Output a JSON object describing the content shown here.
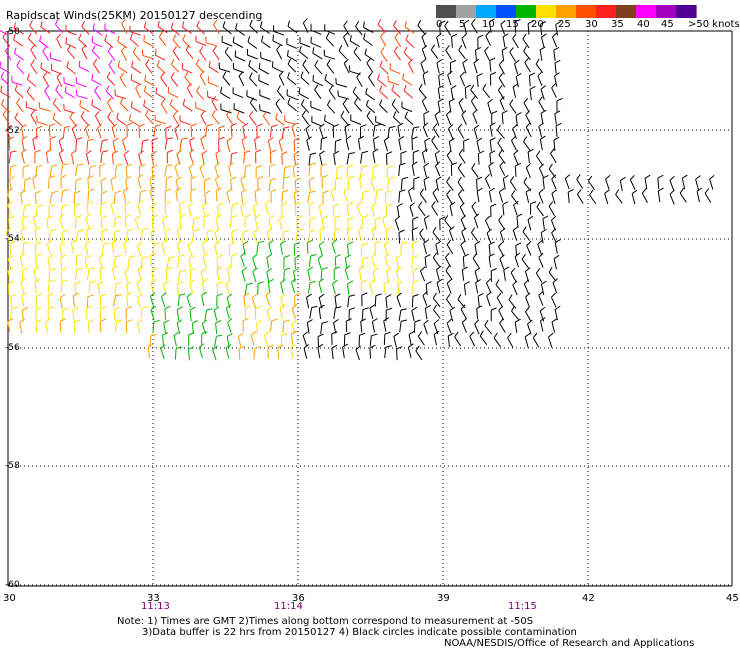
{
  "title": "Rapidscat Winds(25KM) 20150127 descending",
  "legend": {
    "labels": [
      "0",
      "5",
      "10",
      "15",
      "20",
      "25",
      "30",
      "35",
      "40",
      "45",
      ">50 knots"
    ],
    "colors": [
      "#505050",
      "#a0a0a0",
      "#00a8ff",
      "#0050ff",
      "#00b400",
      "#ffe000",
      "#ffa000",
      "#ff5000",
      "#ff2020",
      "#804020",
      "#ff00ff",
      "#a000c0",
      "#500090"
    ]
  },
  "axes": {
    "lat_labels": [
      "-50",
      "-52",
      "-54",
      "-56",
      "-58",
      "-60"
    ],
    "lon_labels": [
      "30",
      "33",
      "36",
      "39",
      "42",
      "45"
    ]
  },
  "time_labels": [
    "11:13",
    "11:14",
    "11:15"
  ],
  "notes": {
    "line1": "Note: 1) Times are GMT 2)Times along bottom correspond to measurement at -50S",
    "line2": "3)Data buffer is 22 hrs from 20150127 4) Black circles indicate possible contamination",
    "line3": "NOAA/NESDIS/Office of Research and Applications"
  }
}
